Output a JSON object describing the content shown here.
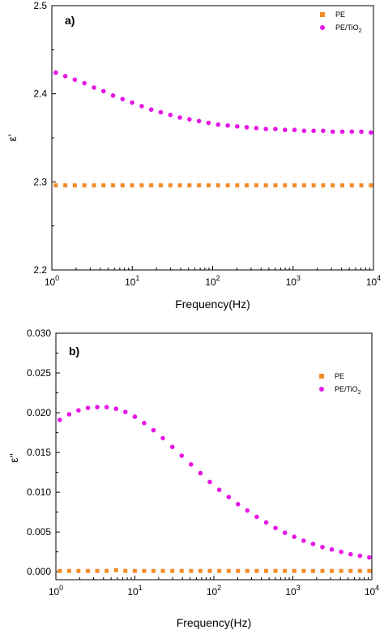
{
  "chart_data": [
    {
      "type": "scatter",
      "panel_label": "a)",
      "xlabel": "Frequency(Hz)",
      "ylabel": "ε'",
      "xscale": "log",
      "xlim": [
        1,
        10000
      ],
      "ylim": [
        2.2,
        2.5
      ],
      "xticks": [
        "10^0",
        "10^1",
        "10^2",
        "10^3",
        "10^4"
      ],
      "yticks": [
        "2.2",
        "2.3",
        "2.4",
        "2.5"
      ],
      "legend_position": "top-right",
      "series": [
        {
          "name": "PE",
          "legend_label": "PE",
          "marker": "square",
          "color": "#f28c28",
          "x": [
            1.12,
            1.47,
            1.93,
            2.54,
            3.34,
            4.39,
            5.77,
            7.58,
            9.97,
            13.1,
            17.2,
            22.6,
            29.8,
            39.1,
            51.4,
            67.6,
            88.9,
            117,
            154,
            202,
            265,
            349,
            459,
            603,
            793,
            1042,
            1370,
            1801,
            2367,
            3112,
            4091,
            5378,
            7069,
            9293
          ],
          "y": [
            2.296,
            2.296,
            2.296,
            2.296,
            2.296,
            2.296,
            2.296,
            2.296,
            2.296,
            2.296,
            2.296,
            2.296,
            2.296,
            2.296,
            2.296,
            2.296,
            2.296,
            2.296,
            2.296,
            2.296,
            2.296,
            2.296,
            2.296,
            2.296,
            2.296,
            2.296,
            2.296,
            2.296,
            2.296,
            2.296,
            2.296,
            2.296,
            2.296,
            2.296
          ]
        },
        {
          "name": "PE/TiO2",
          "legend_label": "PE/TiO",
          "legend_subscript": "2",
          "marker": "circle",
          "color": "#e617e6",
          "x": [
            1.12,
            1.47,
            1.93,
            2.54,
            3.34,
            4.39,
            5.77,
            7.58,
            9.97,
            13.1,
            17.2,
            22.6,
            29.8,
            39.1,
            51.4,
            67.6,
            88.9,
            117,
            154,
            202,
            265,
            349,
            459,
            603,
            793,
            1042,
            1370,
            1801,
            2367,
            3112,
            4091,
            5378,
            7069,
            9293
          ],
          "y": [
            2.424,
            2.42,
            2.416,
            2.412,
            2.407,
            2.403,
            2.398,
            2.394,
            2.39,
            2.386,
            2.382,
            2.379,
            2.376,
            2.373,
            2.371,
            2.369,
            2.367,
            2.365,
            2.364,
            2.363,
            2.362,
            2.361,
            2.36,
            2.36,
            2.359,
            2.359,
            2.358,
            2.358,
            2.358,
            2.357,
            2.357,
            2.357,
            2.357,
            2.356
          ]
        }
      ]
    },
    {
      "type": "scatter",
      "panel_label": "b)",
      "xlabel": "Frequency(Hz)",
      "ylabel": "ε''",
      "xscale": "log",
      "xlim": [
        1,
        10000
      ],
      "ylim": [
        -0.001,
        0.03
      ],
      "xticks": [
        "10^0",
        "10^1",
        "10^2",
        "10^3",
        "10^4"
      ],
      "yticks": [
        "0.000",
        "0.005",
        "0.010",
        "0.015",
        "0.020",
        "0.025",
        "0.030"
      ],
      "legend_position": "top-right",
      "series": [
        {
          "name": "PE",
          "legend_label": "PE",
          "marker": "square",
          "color": "#f28c28",
          "x": [
            1.12,
            1.47,
            1.93,
            2.54,
            3.34,
            4.39,
            5.77,
            7.58,
            9.97,
            13.1,
            17.2,
            22.6,
            29.8,
            39.1,
            51.4,
            67.6,
            88.9,
            117,
            154,
            202,
            265,
            349,
            459,
            603,
            793,
            1042,
            1370,
            1801,
            2367,
            3112,
            4091,
            5378,
            7069,
            9293
          ],
          "y": [
            0.0001,
            0.0001,
            0.0001,
            0.0001,
            0.0001,
            0.0001,
            0.0002,
            0.0001,
            0.0001,
            0.0001,
            0.0001,
            0.0001,
            0.0001,
            0.0001,
            0.0001,
            0.0001,
            0.0001,
            0.0001,
            0.0001,
            0.0001,
            0.0001,
            0.0001,
            0.0001,
            0.0001,
            0.0001,
            0.0001,
            0.0001,
            0.0001,
            0.0001,
            0.0001,
            0.0001,
            0.0001,
            0.0001,
            0.0001
          ]
        },
        {
          "name": "PE/TiO2",
          "legend_label": "PE/TiO",
          "legend_subscript": "2",
          "marker": "circle",
          "color": "#e617e6",
          "x": [
            1.12,
            1.47,
            1.93,
            2.54,
            3.34,
            4.39,
            5.77,
            7.58,
            9.97,
            13.1,
            17.2,
            22.6,
            29.8,
            39.1,
            51.4,
            67.6,
            88.9,
            117,
            154,
            202,
            265,
            349,
            459,
            603,
            793,
            1042,
            1370,
            1801,
            2367,
            3112,
            4091,
            5378,
            7069,
            9293
          ],
          "y": [
            0.0191,
            0.0198,
            0.0203,
            0.0206,
            0.0207,
            0.0207,
            0.0205,
            0.0201,
            0.0195,
            0.0187,
            0.0178,
            0.0168,
            0.0157,
            0.0146,
            0.0135,
            0.0124,
            0.0113,
            0.0103,
            0.0094,
            0.0085,
            0.0077,
            0.0069,
            0.0062,
            0.0055,
            0.0049,
            0.0044,
            0.0039,
            0.0035,
            0.0031,
            0.0028,
            0.0025,
            0.0022,
            0.002,
            0.0018
          ]
        }
      ]
    }
  ]
}
